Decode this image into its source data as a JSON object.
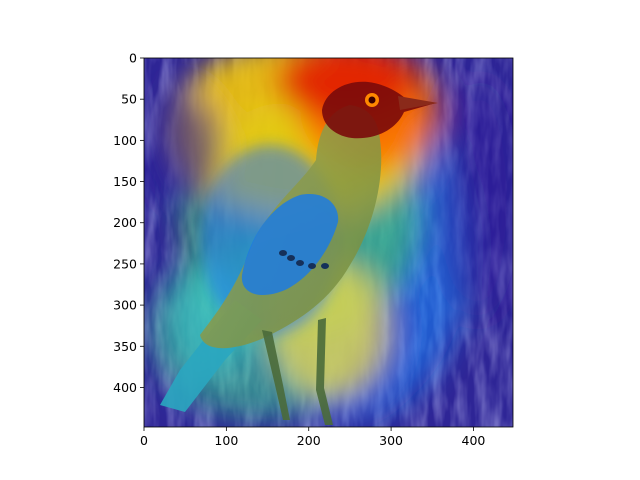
{
  "figure": {
    "image_subject": "bird with attention heatmap overlay",
    "colormap": "jet",
    "colors": {
      "background": "#ffffff",
      "axis": "#000000",
      "hot": "#d40000",
      "warm": "#ffd000",
      "mid": "#33cc55",
      "cool": "#1a88ff",
      "cold": "#2a1a9a",
      "bird_body": "#8a9a4a",
      "bird_head": "#7a0a0a",
      "eye": "#ff8800"
    }
  },
  "axes": {
    "x_range": [
      0,
      448
    ],
    "y_range": [
      448,
      0
    ],
    "x_ticks": [
      {
        "value": 0,
        "label": "0"
      },
      {
        "value": 100,
        "label": "100"
      },
      {
        "value": 200,
        "label": "200"
      },
      {
        "value": 300,
        "label": "300"
      },
      {
        "value": 400,
        "label": "400"
      }
    ],
    "y_ticks": [
      {
        "value": 0,
        "label": "0"
      },
      {
        "value": 50,
        "label": "50"
      },
      {
        "value": 100,
        "label": "100"
      },
      {
        "value": 150,
        "label": "150"
      },
      {
        "value": 200,
        "label": "200"
      },
      {
        "value": 250,
        "label": "250"
      },
      {
        "value": 300,
        "label": "300"
      },
      {
        "value": 350,
        "label": "350"
      },
      {
        "value": 400,
        "label": "400"
      }
    ]
  }
}
